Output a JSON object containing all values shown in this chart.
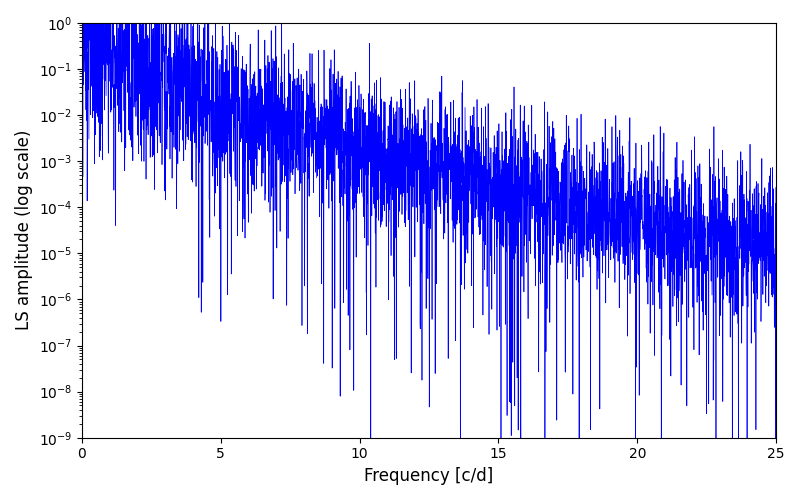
{
  "xlabel": "Frequency [c/d]",
  "ylabel": "LS amplitude (log scale)",
  "xlim": [
    0,
    25
  ],
  "ylim": [
    1e-09,
    1.0
  ],
  "line_color": "#0000ff",
  "line_width": 0.5,
  "background_color": "#ffffff",
  "figsize": [
    8.0,
    5.0
  ],
  "dpi": 100,
  "freq_max": 25.0,
  "n_points": 4000,
  "seed": 123
}
